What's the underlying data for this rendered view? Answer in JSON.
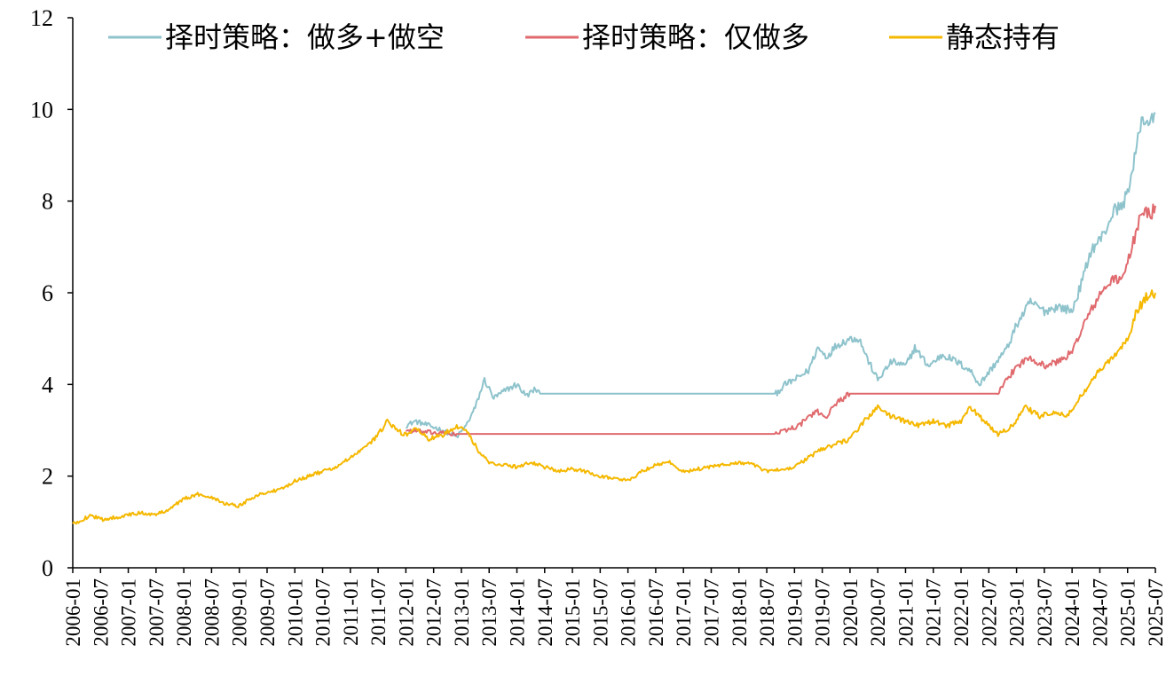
{
  "chart_data": {
    "type": "line",
    "title": "",
    "xlabel": "",
    "ylabel": "",
    "ylim": [
      0,
      12
    ],
    "yticks": [
      0,
      2,
      4,
      6,
      8,
      10,
      12
    ],
    "xlim": [
      "2006-01",
      "2025-07"
    ],
    "xticks": [
      "2006-01",
      "2006-07",
      "2007-01",
      "2007-07",
      "2008-01",
      "2008-07",
      "2009-01",
      "2009-07",
      "2010-01",
      "2010-07",
      "2011-01",
      "2011-07",
      "2012-01",
      "2012-07",
      "2013-01",
      "2013-07",
      "2014-01",
      "2014-07",
      "2015-01",
      "2015-07",
      "2016-01",
      "2016-07",
      "2017-01",
      "2017-07",
      "2018-01",
      "2018-07",
      "2019-01",
      "2019-07",
      "2020-01",
      "2020-07",
      "2021-01",
      "2021-07",
      "2022-01",
      "2022-07",
      "2023-01",
      "2023-07",
      "2024-01",
      "2024-07",
      "2025-01",
      "2025-07"
    ],
    "grid": false,
    "legend_position": "top",
    "series": [
      {
        "name": "择时策略：做多+做空",
        "color": "#8EC3CC",
        "points": [
          [
            "2012-01",
            3.1
          ],
          [
            "2012-03",
            3.2
          ],
          [
            "2012-06",
            3.1
          ],
          [
            "2012-09",
            3.0
          ],
          [
            "2012-12",
            2.85
          ],
          [
            "2013-02",
            3.1
          ],
          [
            "2013-04",
            3.5
          ],
          [
            "2013-06",
            4.1
          ],
          [
            "2013-08",
            3.7
          ],
          [
            "2013-11",
            3.9
          ],
          [
            "2014-01",
            4.0
          ],
          [
            "2014-03",
            3.75
          ],
          [
            "2014-05",
            3.9
          ],
          [
            "2014-06",
            3.8
          ],
          [
            "2015-01",
            3.8
          ],
          [
            "2016-01",
            3.8
          ],
          [
            "2017-01",
            3.8
          ],
          [
            "2018-01",
            3.8
          ],
          [
            "2018-09",
            3.8
          ],
          [
            "2018-11",
            4.0
          ],
          [
            "2019-01",
            4.1
          ],
          [
            "2019-04",
            4.3
          ],
          [
            "2019-06",
            4.8
          ],
          [
            "2019-08",
            4.6
          ],
          [
            "2019-10",
            4.85
          ],
          [
            "2020-01",
            5.0
          ],
          [
            "2020-03",
            5.0
          ],
          [
            "2020-05",
            4.5
          ],
          [
            "2020-07",
            4.1
          ],
          [
            "2020-10",
            4.5
          ],
          [
            "2021-01",
            4.4
          ],
          [
            "2021-03",
            4.8
          ],
          [
            "2021-06",
            4.4
          ],
          [
            "2021-09",
            4.65
          ],
          [
            "2021-12",
            4.5
          ],
          [
            "2022-03",
            4.3
          ],
          [
            "2022-05",
            4.0
          ],
          [
            "2022-08",
            4.4
          ],
          [
            "2022-11",
            4.8
          ],
          [
            "2023-01",
            5.3
          ],
          [
            "2023-04",
            5.8
          ],
          [
            "2023-07",
            5.6
          ],
          [
            "2023-10",
            5.7
          ],
          [
            "2024-01",
            5.6
          ],
          [
            "2024-03",
            6.2
          ],
          [
            "2024-05",
            6.9
          ],
          [
            "2024-08",
            7.3
          ],
          [
            "2024-10",
            7.8
          ],
          [
            "2024-12",
            7.9
          ],
          [
            "2025-02",
            8.6
          ],
          [
            "2025-04",
            9.8
          ],
          [
            "2025-06",
            9.7
          ],
          [
            "2025-07",
            9.9
          ]
        ]
      },
      {
        "name": "择时策略：仅做多",
        "color": "#E06A6E",
        "points": [
          [
            "2012-01",
            3.0
          ],
          [
            "2012-06",
            2.95
          ],
          [
            "2012-12",
            2.92
          ],
          [
            "2013-06",
            2.92
          ],
          [
            "2014-06",
            2.92
          ],
          [
            "2015-06",
            2.92
          ],
          [
            "2016-06",
            2.92
          ],
          [
            "2017-06",
            2.92
          ],
          [
            "2018-09",
            2.92
          ],
          [
            "2018-11",
            3.0
          ],
          [
            "2019-02",
            3.1
          ],
          [
            "2019-04",
            3.3
          ],
          [
            "2019-06",
            3.4
          ],
          [
            "2019-08",
            3.3
          ],
          [
            "2019-10",
            3.6
          ],
          [
            "2020-01",
            3.8
          ],
          [
            "2021-01",
            3.8
          ],
          [
            "2022-01",
            3.8
          ],
          [
            "2022-09",
            3.8
          ],
          [
            "2022-11",
            4.1
          ],
          [
            "2023-01",
            4.4
          ],
          [
            "2023-04",
            4.6
          ],
          [
            "2023-07",
            4.4
          ],
          [
            "2023-10",
            4.5
          ],
          [
            "2024-01",
            4.7
          ],
          [
            "2024-03",
            5.2
          ],
          [
            "2024-05",
            5.6
          ],
          [
            "2024-08",
            6.1
          ],
          [
            "2024-10",
            6.3
          ],
          [
            "2024-12",
            6.3
          ],
          [
            "2025-02",
            7.0
          ],
          [
            "2025-04",
            7.8
          ],
          [
            "2025-06",
            7.7
          ],
          [
            "2025-07",
            7.9
          ]
        ]
      },
      {
        "name": "静态持有",
        "color": "#F5B800",
        "points": [
          [
            "2006-01",
            0.95
          ],
          [
            "2006-03",
            1.05
          ],
          [
            "2006-05",
            1.15
          ],
          [
            "2006-07",
            1.05
          ],
          [
            "2006-10",
            1.1
          ],
          [
            "2007-01",
            1.15
          ],
          [
            "2007-04",
            1.2
          ],
          [
            "2007-07",
            1.15
          ],
          [
            "2007-10",
            1.3
          ],
          [
            "2008-01",
            1.5
          ],
          [
            "2008-04",
            1.6
          ],
          [
            "2008-07",
            1.55
          ],
          [
            "2008-10",
            1.4
          ],
          [
            "2009-01",
            1.35
          ],
          [
            "2009-04",
            1.55
          ],
          [
            "2009-07",
            1.65
          ],
          [
            "2009-10",
            1.7
          ],
          [
            "2010-01",
            1.9
          ],
          [
            "2010-04",
            2.0
          ],
          [
            "2010-07",
            2.1
          ],
          [
            "2010-10",
            2.2
          ],
          [
            "2011-01",
            2.4
          ],
          [
            "2011-04",
            2.6
          ],
          [
            "2011-07",
            2.9
          ],
          [
            "2011-09",
            3.2
          ],
          [
            "2011-11",
            3.0
          ],
          [
            "2012-01",
            2.9
          ],
          [
            "2012-03",
            3.05
          ],
          [
            "2012-06",
            2.8
          ],
          [
            "2012-09",
            2.9
          ],
          [
            "2012-12",
            3.1
          ],
          [
            "2013-02",
            3.0
          ],
          [
            "2013-05",
            2.5
          ],
          [
            "2013-07",
            2.3
          ],
          [
            "2013-10",
            2.25
          ],
          [
            "2014-01",
            2.2
          ],
          [
            "2014-04",
            2.3
          ],
          [
            "2014-07",
            2.2
          ],
          [
            "2014-10",
            2.1
          ],
          [
            "2015-01",
            2.15
          ],
          [
            "2015-04",
            2.1
          ],
          [
            "2015-07",
            2.0
          ],
          [
            "2015-10",
            1.95
          ],
          [
            "2016-01",
            1.9
          ],
          [
            "2016-04",
            2.1
          ],
          [
            "2016-07",
            2.25
          ],
          [
            "2016-10",
            2.3
          ],
          [
            "2017-01",
            2.1
          ],
          [
            "2017-04",
            2.15
          ],
          [
            "2017-07",
            2.2
          ],
          [
            "2017-10",
            2.25
          ],
          [
            "2018-01",
            2.3
          ],
          [
            "2018-04",
            2.25
          ],
          [
            "2018-07",
            2.1
          ],
          [
            "2018-10",
            2.15
          ],
          [
            "2019-01",
            2.2
          ],
          [
            "2019-04",
            2.4
          ],
          [
            "2019-07",
            2.6
          ],
          [
            "2019-10",
            2.7
          ],
          [
            "2020-01",
            2.8
          ],
          [
            "2020-04",
            3.2
          ],
          [
            "2020-07",
            3.5
          ],
          [
            "2020-10",
            3.3
          ],
          [
            "2021-01",
            3.2
          ],
          [
            "2021-04",
            3.1
          ],
          [
            "2021-07",
            3.2
          ],
          [
            "2021-10",
            3.1
          ],
          [
            "2022-01",
            3.2
          ],
          [
            "2022-03",
            3.5
          ],
          [
            "2022-06",
            3.2
          ],
          [
            "2022-09",
            2.9
          ],
          [
            "2022-12",
            3.1
          ],
          [
            "2023-03",
            3.5
          ],
          [
            "2023-06",
            3.3
          ],
          [
            "2023-09",
            3.4
          ],
          [
            "2023-12",
            3.3
          ],
          [
            "2024-02",
            3.6
          ],
          [
            "2024-04",
            3.9
          ],
          [
            "2024-06",
            4.2
          ],
          [
            "2024-09",
            4.5
          ],
          [
            "2024-11",
            4.7
          ],
          [
            "2025-01",
            5.0
          ],
          [
            "2025-03",
            5.6
          ],
          [
            "2025-05",
            5.9
          ],
          [
            "2025-07",
            6.0
          ]
        ]
      }
    ]
  }
}
